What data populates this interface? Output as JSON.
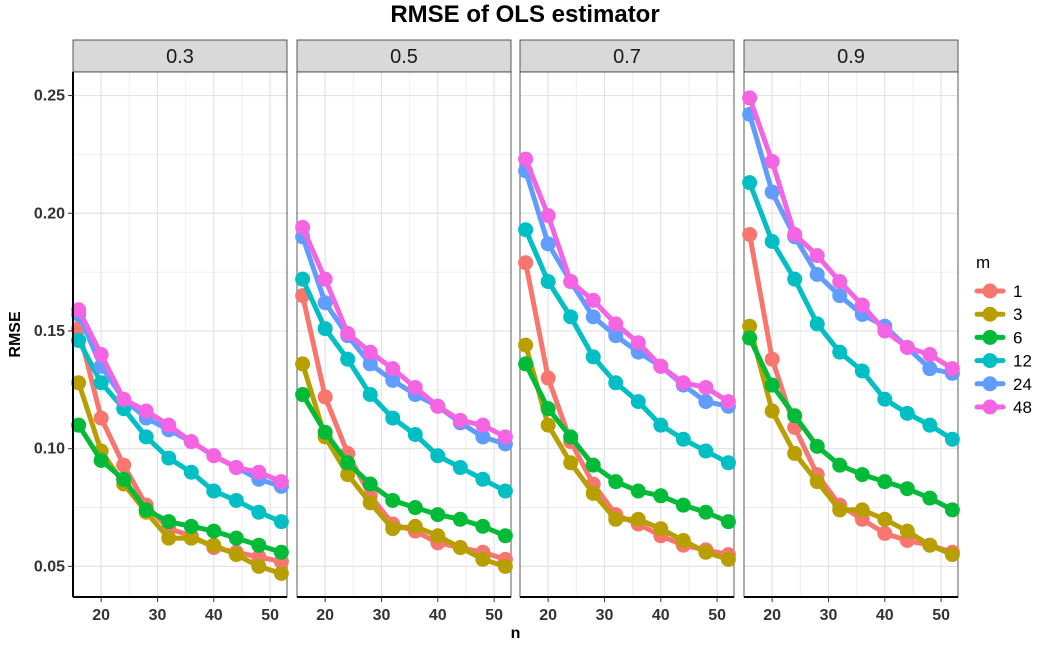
{
  "chart_data": {
    "type": "line",
    "title": "RMSE of OLS estimator",
    "xlabel": "n",
    "ylabel": "RMSE",
    "legend_title": "m",
    "legend_position": "right",
    "grid": true,
    "x": [
      16,
      20,
      24,
      28,
      32,
      36,
      40,
      44,
      48,
      52
    ],
    "xticks": [
      20,
      30,
      40,
      50
    ],
    "yticks": [
      0.05,
      0.1,
      0.15,
      0.2,
      0.25
    ],
    "ytick_labels": [
      "0.05",
      "0.10",
      "0.15",
      "0.20",
      "0.25"
    ],
    "xlim": [
      15,
      53
    ],
    "ylim": [
      0.037,
      0.26
    ],
    "series_colors": {
      "1": "#F8766D",
      "3": "#B79F00",
      "6": "#00BA38",
      "12": "#00BFC4",
      "24": "#619CFF",
      "48": "#F564E3"
    },
    "panels": [
      {
        "label": "0.3",
        "series": [
          {
            "name": "1",
            "values": [
              0.151,
              0.113,
              0.093,
              0.076,
              0.066,
              0.063,
              0.058,
              0.056,
              0.054,
              0.052
            ]
          },
          {
            "name": "3",
            "values": [
              0.128,
              0.099,
              0.085,
              0.073,
              0.062,
              0.062,
              0.059,
              0.055,
              0.05,
              0.047
            ]
          },
          {
            "name": "6",
            "values": [
              0.11,
              0.095,
              0.087,
              0.074,
              0.069,
              0.067,
              0.065,
              0.062,
              0.059,
              0.056
            ]
          },
          {
            "name": "12",
            "values": [
              0.146,
              0.128,
              0.117,
              0.105,
              0.096,
              0.09,
              0.082,
              0.078,
              0.073,
              0.069
            ]
          },
          {
            "name": "24",
            "values": [
              0.157,
              0.135,
              0.121,
              0.113,
              0.108,
              0.103,
              0.097,
              0.092,
              0.087,
              0.084
            ]
          },
          {
            "name": "48",
            "values": [
              0.159,
              0.14,
              0.121,
              0.116,
              0.11,
              0.103,
              0.097,
              0.092,
              0.09,
              0.086
            ]
          }
        ]
      },
      {
        "label": "0.5",
        "series": [
          {
            "name": "1",
            "values": [
              0.165,
              0.122,
              0.098,
              0.08,
              0.068,
              0.065,
              0.06,
              0.058,
              0.056,
              0.053
            ]
          },
          {
            "name": "3",
            "values": [
              0.136,
              0.105,
              0.089,
              0.077,
              0.066,
              0.067,
              0.063,
              0.058,
              0.053,
              0.05
            ]
          },
          {
            "name": "6",
            "values": [
              0.123,
              0.107,
              0.094,
              0.085,
              0.078,
              0.075,
              0.072,
              0.07,
              0.067,
              0.063
            ]
          },
          {
            "name": "12",
            "values": [
              0.172,
              0.151,
              0.138,
              0.123,
              0.113,
              0.106,
              0.097,
              0.092,
              0.087,
              0.082
            ]
          },
          {
            "name": "24",
            "values": [
              0.19,
              0.162,
              0.148,
              0.136,
              0.129,
              0.123,
              0.118,
              0.111,
              0.105,
              0.102
            ]
          },
          {
            "name": "48",
            "values": [
              0.194,
              0.172,
              0.149,
              0.141,
              0.134,
              0.126,
              0.118,
              0.112,
              0.11,
              0.105
            ]
          }
        ]
      },
      {
        "label": "0.7",
        "series": [
          {
            "name": "1",
            "values": [
              0.179,
              0.13,
              0.103,
              0.085,
              0.072,
              0.068,
              0.063,
              0.059,
              0.057,
              0.055
            ]
          },
          {
            "name": "3",
            "values": [
              0.144,
              0.11,
              0.094,
              0.081,
              0.07,
              0.07,
              0.066,
              0.061,
              0.056,
              0.053
            ]
          },
          {
            "name": "6",
            "values": [
              0.136,
              0.117,
              0.105,
              0.093,
              0.086,
              0.082,
              0.08,
              0.076,
              0.073,
              0.069
            ]
          },
          {
            "name": "12",
            "values": [
              0.193,
              0.171,
              0.156,
              0.139,
              0.128,
              0.12,
              0.11,
              0.104,
              0.099,
              0.094
            ]
          },
          {
            "name": "24",
            "values": [
              0.218,
              0.187,
              0.171,
              0.156,
              0.148,
              0.141,
              0.135,
              0.127,
              0.12,
              0.118
            ]
          },
          {
            "name": "48",
            "values": [
              0.223,
              0.199,
              0.171,
              0.163,
              0.153,
              0.145,
              0.135,
              0.128,
              0.126,
              0.12
            ]
          }
        ]
      },
      {
        "label": "0.9",
        "series": [
          {
            "name": "1",
            "values": [
              0.191,
              0.138,
              0.109,
              0.089,
              0.076,
              0.07,
              0.064,
              0.061,
              0.059,
              0.056
            ]
          },
          {
            "name": "3",
            "values": [
              0.152,
              0.116,
              0.098,
              0.086,
              0.074,
              0.074,
              0.07,
              0.065,
              0.059,
              0.055
            ]
          },
          {
            "name": "6",
            "values": [
              0.147,
              0.127,
              0.114,
              0.101,
              0.093,
              0.089,
              0.086,
              0.083,
              0.079,
              0.074
            ]
          },
          {
            "name": "12",
            "values": [
              0.213,
              0.188,
              0.172,
              0.153,
              0.141,
              0.133,
              0.121,
              0.115,
              0.11,
              0.104
            ]
          },
          {
            "name": "24",
            "values": [
              0.242,
              0.209,
              0.19,
              0.174,
              0.165,
              0.157,
              0.152,
              0.143,
              0.134,
              0.132
            ]
          },
          {
            "name": "48",
            "values": [
              0.249,
              0.222,
              0.191,
              0.182,
              0.171,
              0.161,
              0.15,
              0.143,
              0.14,
              0.134
            ]
          }
        ]
      }
    ]
  }
}
